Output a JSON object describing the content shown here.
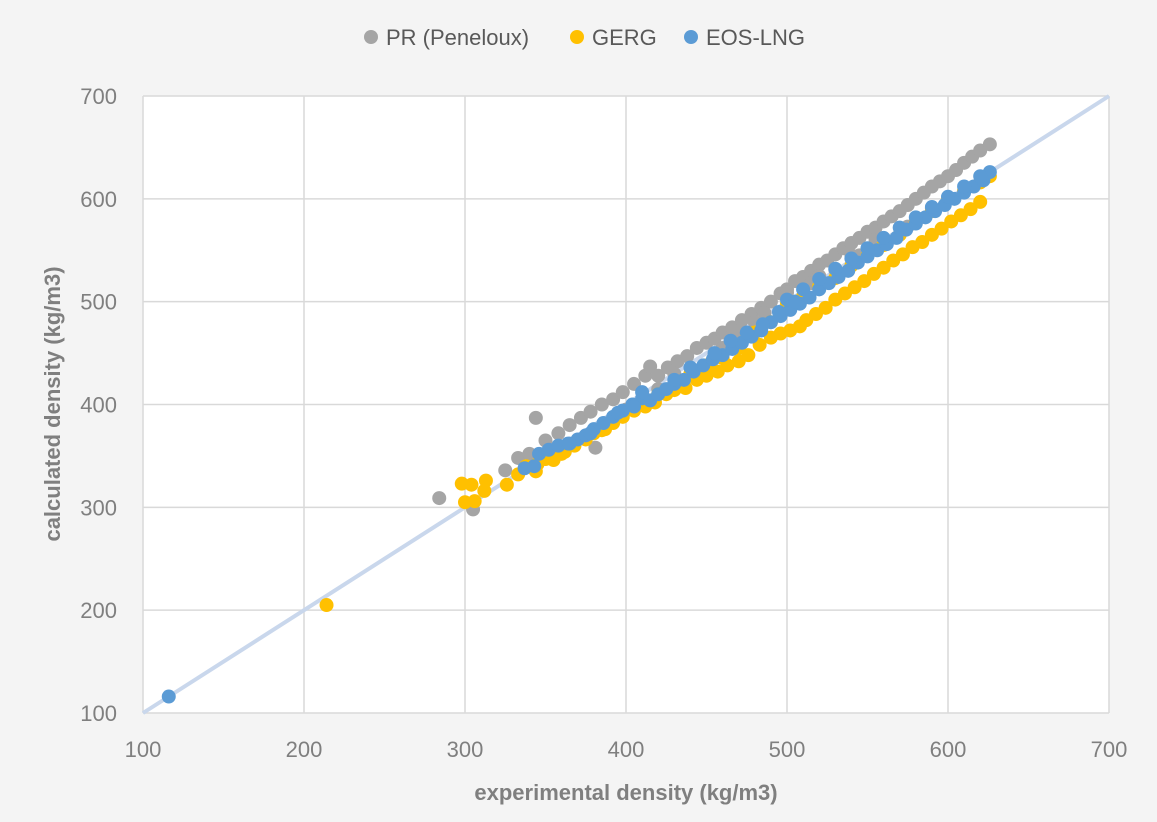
{
  "chart_data": {
    "type": "scatter",
    "title": "",
    "xlabel": "experimental density (kg/m3)",
    "ylabel": "calculated density (kg/m3)",
    "xlim": [
      100,
      700
    ],
    "ylim": [
      100,
      700
    ],
    "xticks": [
      "100",
      "200",
      "300",
      "400",
      "500",
      "600",
      "700"
    ],
    "yticks": [
      "100",
      "200",
      "300",
      "400",
      "500",
      "600",
      "700"
    ],
    "grid": true,
    "legend_position": "top",
    "reference_line": {
      "x": [
        100,
        700
      ],
      "y": [
        100,
        700
      ],
      "color": "#c9d7ec"
    },
    "series": [
      {
        "name": "PR (Peneloux)",
        "color": "#a5a5a5",
        "points": [
          [
            284,
            309
          ],
          [
            305,
            298
          ],
          [
            325,
            336
          ],
          [
            333,
            348
          ],
          [
            340,
            352
          ],
          [
            344,
            387
          ],
          [
            350,
            365
          ],
          [
            358,
            372
          ],
          [
            365,
            380
          ],
          [
            372,
            387
          ],
          [
            378,
            393
          ],
          [
            381,
            358
          ],
          [
            385,
            400
          ],
          [
            392,
            405
          ],
          [
            398,
            412
          ],
          [
            405,
            420
          ],
          [
            412,
            428
          ],
          [
            415,
            437
          ],
          [
            420,
            428
          ],
          [
            426,
            436
          ],
          [
            432,
            442
          ],
          [
            438,
            447
          ],
          [
            444,
            455
          ],
          [
            450,
            460
          ],
          [
            455,
            464
          ],
          [
            460,
            470
          ],
          [
            466,
            475
          ],
          [
            472,
            482
          ],
          [
            478,
            488
          ],
          [
            484,
            494
          ],
          [
            490,
            500
          ],
          [
            496,
            508
          ],
          [
            500,
            512
          ],
          [
            505,
            520
          ],
          [
            510,
            524
          ],
          [
            515,
            530
          ],
          [
            520,
            536
          ],
          [
            525,
            540
          ],
          [
            530,
            546
          ],
          [
            535,
            552
          ],
          [
            540,
            557
          ],
          [
            545,
            562
          ],
          [
            550,
            568
          ],
          [
            555,
            572
          ],
          [
            560,
            578
          ],
          [
            565,
            583
          ],
          [
            570,
            588
          ],
          [
            575,
            594
          ],
          [
            580,
            600
          ],
          [
            585,
            606
          ],
          [
            590,
            612
          ],
          [
            595,
            617
          ],
          [
            600,
            622
          ],
          [
            605,
            628
          ],
          [
            610,
            635
          ],
          [
            615,
            641
          ],
          [
            620,
            647
          ],
          [
            626,
            653
          ],
          [
            470,
            470
          ],
          [
            486,
            489
          ],
          [
            500,
            509
          ],
          [
            515,
            518
          ],
          [
            530,
            531
          ],
          [
            545,
            545
          ],
          [
            560,
            558
          ],
          [
            575,
            573
          ],
          [
            590,
            591
          ],
          [
            430,
            430
          ],
          [
            460,
            455
          ],
          [
            520,
            525
          ],
          [
            540,
            545
          ],
          [
            555,
            560
          ],
          [
            480,
            480
          ],
          [
            400,
            395
          ],
          [
            420,
            415
          ]
        ]
      },
      {
        "name": "GERG",
        "color": "#ffc000",
        "points": [
          [
            214,
            205
          ],
          [
            298,
            323
          ],
          [
            300,
            305
          ],
          [
            304,
            322
          ],
          [
            306,
            306
          ],
          [
            312,
            316
          ],
          [
            313,
            326
          ],
          [
            326,
            322
          ],
          [
            333,
            332
          ],
          [
            338,
            340
          ],
          [
            344,
            335
          ],
          [
            350,
            347
          ],
          [
            355,
            346
          ],
          [
            362,
            354
          ],
          [
            368,
            360
          ],
          [
            375,
            366
          ],
          [
            380,
            372
          ],
          [
            387,
            376
          ],
          [
            392,
            382
          ],
          [
            398,
            388
          ],
          [
            405,
            394
          ],
          [
            412,
            398
          ],
          [
            418,
            402
          ],
          [
            425,
            410
          ],
          [
            430,
            414
          ],
          [
            437,
            416
          ],
          [
            444,
            424
          ],
          [
            450,
            428
          ],
          [
            457,
            432
          ],
          [
            463,
            438
          ],
          [
            470,
            442
          ],
          [
            476,
            448
          ],
          [
            483,
            458
          ],
          [
            490,
            465
          ],
          [
            496,
            469
          ],
          [
            502,
            472
          ],
          [
            508,
            476
          ],
          [
            512,
            482
          ],
          [
            518,
            488
          ],
          [
            524,
            494
          ],
          [
            530,
            502
          ],
          [
            536,
            508
          ],
          [
            542,
            514
          ],
          [
            548,
            520
          ],
          [
            554,
            527
          ],
          [
            560,
            533
          ],
          [
            566,
            540
          ],
          [
            572,
            546
          ],
          [
            578,
            553
          ],
          [
            584,
            558
          ],
          [
            590,
            565
          ],
          [
            596,
            571
          ],
          [
            602,
            578
          ],
          [
            608,
            584
          ],
          [
            614,
            590
          ],
          [
            620,
            597
          ],
          [
            626,
            622
          ],
          [
            500,
            498
          ],
          [
            510,
            505
          ],
          [
            520,
            515
          ],
          [
            530,
            523
          ],
          [
            540,
            535
          ],
          [
            550,
            545
          ],
          [
            560,
            555
          ],
          [
            570,
            565
          ],
          [
            580,
            577
          ],
          [
            590,
            588
          ],
          [
            600,
            600
          ],
          [
            610,
            608
          ],
          [
            620,
            616
          ],
          [
            460,
            445
          ],
          [
            470,
            455
          ],
          [
            480,
            470
          ],
          [
            490,
            480
          ],
          [
            440,
            430
          ],
          [
            450,
            438
          ],
          [
            420,
            410
          ],
          [
            385,
            375
          ],
          [
            360,
            352
          ],
          [
            345,
            342
          ]
        ]
      },
      {
        "name": "EOS-LNG",
        "color": "#5b9bd5",
        "points": [
          [
            116,
            116
          ],
          [
            337,
            338
          ],
          [
            343,
            340
          ],
          [
            346,
            352
          ],
          [
            352,
            356
          ],
          [
            358,
            360
          ],
          [
            364,
            362
          ],
          [
            370,
            366
          ],
          [
            375,
            370
          ],
          [
            380,
            376
          ],
          [
            386,
            382
          ],
          [
            392,
            388
          ],
          [
            398,
            394
          ],
          [
            404,
            400
          ],
          [
            410,
            406
          ],
          [
            415,
            404
          ],
          [
            420,
            410
          ],
          [
            425,
            415
          ],
          [
            430,
            420
          ],
          [
            436,
            424
          ],
          [
            442,
            432
          ],
          [
            448,
            438
          ],
          [
            454,
            444
          ],
          [
            460,
            448
          ],
          [
            466,
            454
          ],
          [
            472,
            460
          ],
          [
            478,
            466
          ],
          [
            484,
            472
          ],
          [
            490,
            480
          ],
          [
            496,
            486
          ],
          [
            502,
            492
          ],
          [
            508,
            498
          ],
          [
            514,
            504
          ],
          [
            520,
            512
          ],
          [
            526,
            518
          ],
          [
            532,
            524
          ],
          [
            538,
            530
          ],
          [
            544,
            538
          ],
          [
            550,
            544
          ],
          [
            556,
            550
          ],
          [
            562,
            556
          ],
          [
            568,
            562
          ],
          [
            574,
            570
          ],
          [
            580,
            576
          ],
          [
            586,
            582
          ],
          [
            592,
            588
          ],
          [
            598,
            594
          ],
          [
            604,
            600
          ],
          [
            610,
            606
          ],
          [
            616,
            612
          ],
          [
            622,
            618
          ],
          [
            626,
            626
          ],
          [
            500,
            502
          ],
          [
            510,
            512
          ],
          [
            520,
            522
          ],
          [
            530,
            532
          ],
          [
            540,
            542
          ],
          [
            550,
            552
          ],
          [
            560,
            562
          ],
          [
            570,
            572
          ],
          [
            580,
            582
          ],
          [
            590,
            592
          ],
          [
            600,
            602
          ],
          [
            610,
            612
          ],
          [
            620,
            622
          ],
          [
            455,
            450
          ],
          [
            465,
            462
          ],
          [
            475,
            470
          ],
          [
            485,
            478
          ],
          [
            495,
            490
          ],
          [
            505,
            500
          ],
          [
            395,
            392
          ],
          [
            405,
            398
          ],
          [
            410,
            412
          ],
          [
            365,
            362
          ],
          [
            378,
            372
          ],
          [
            430,
            424
          ],
          [
            440,
            436
          ]
        ]
      }
    ]
  }
}
